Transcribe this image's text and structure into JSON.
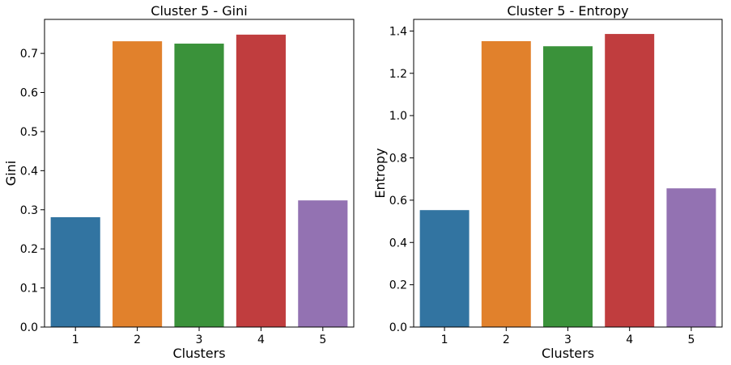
{
  "chart_data": [
    {
      "type": "bar",
      "title": "Cluster 5 - Gini",
      "xlabel": "Clusters",
      "ylabel": "Gini",
      "categories": [
        "1",
        "2",
        "3",
        "4",
        "5"
      ],
      "values": [
        0.281,
        0.731,
        0.725,
        0.748,
        0.324
      ],
      "colors": [
        "#3274a1",
        "#e1812c",
        "#3a923a",
        "#c03d3e",
        "#9372b2"
      ],
      "ylim": [
        0,
        0.787
      ],
      "yticks": [
        0.0,
        0.1,
        0.2,
        0.3,
        0.4,
        0.5,
        0.6,
        0.7
      ],
      "ytick_labels": [
        "0.0",
        "0.1",
        "0.2",
        "0.3",
        "0.4",
        "0.5",
        "0.6",
        "0.7"
      ],
      "grid": false
    },
    {
      "type": "bar",
      "title": "Cluster 5 - Entropy",
      "xlabel": "Clusters",
      "ylabel": "Entropy",
      "categories": [
        "1",
        "2",
        "3",
        "4",
        "5"
      ],
      "values": [
        0.553,
        1.352,
        1.328,
        1.386,
        0.656
      ],
      "colors": [
        "#3274a1",
        "#e1812c",
        "#3a923a",
        "#c03d3e",
        "#9372b2"
      ],
      "ylim": [
        0,
        1.455
      ],
      "yticks": [
        0.0,
        0.2,
        0.4,
        0.6,
        0.8,
        1.0,
        1.2,
        1.4
      ],
      "ytick_labels": [
        "0.0",
        "0.2",
        "0.4",
        "0.6",
        "0.8",
        "1.0",
        "1.2",
        "1.4"
      ],
      "grid": false
    }
  ]
}
